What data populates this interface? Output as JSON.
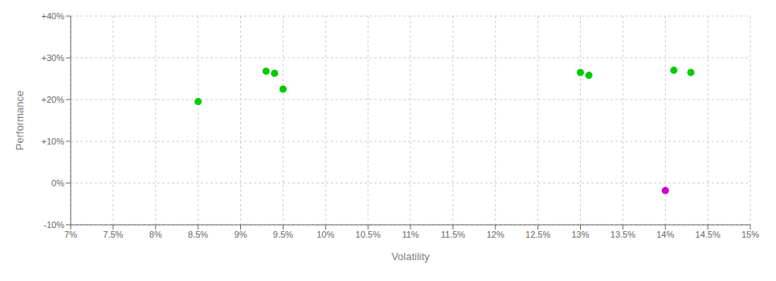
{
  "chart_data": {
    "type": "scatter",
    "xlabel": "Volatility",
    "ylabel": "Performance",
    "xlim": [
      0.07,
      0.15
    ],
    "ylim": [
      -0.1,
      0.4
    ],
    "xticks": [
      {
        "value": 0.07,
        "label": "7%"
      },
      {
        "value": 0.075,
        "label": "7.5%"
      },
      {
        "value": 0.08,
        "label": "8%"
      },
      {
        "value": 0.085,
        "label": "8.5%"
      },
      {
        "value": 0.09,
        "label": "9%"
      },
      {
        "value": 0.095,
        "label": "9.5%"
      },
      {
        "value": 0.1,
        "label": "10%"
      },
      {
        "value": 0.105,
        "label": "10.5%"
      },
      {
        "value": 0.11,
        "label": "11%"
      },
      {
        "value": 0.115,
        "label": "11.5%"
      },
      {
        "value": 0.12,
        "label": "12%"
      },
      {
        "value": 0.125,
        "label": "12.5%"
      },
      {
        "value": 0.13,
        "label": "13%"
      },
      {
        "value": 0.135,
        "label": "13.5%"
      },
      {
        "value": 0.14,
        "label": "14%"
      },
      {
        "value": 0.145,
        "label": "14.5%"
      },
      {
        "value": 0.15,
        "label": "15%"
      }
    ],
    "yticks": [
      {
        "value": -0.1,
        "label": "-10%"
      },
      {
        "value": 0.0,
        "label": "0%"
      },
      {
        "value": 0.1,
        "label": "+10%"
      },
      {
        "value": 0.2,
        "label": "+20%"
      },
      {
        "value": 0.3,
        "label": "+30%"
      },
      {
        "value": 0.4,
        "label": "+40%"
      }
    ],
    "grid": true,
    "series": [
      {
        "color": "#00cc00",
        "x": [
          0.085,
          0.093,
          0.094,
          0.095,
          0.13,
          0.131,
          0.141,
          0.143
        ],
        "y": [
          0.195,
          0.268,
          0.263,
          0.225,
          0.265,
          0.258,
          0.27,
          0.265
        ]
      },
      {
        "color": "#cc00cc",
        "x": [
          0.14
        ],
        "y": [
          -0.018
        ]
      }
    ]
  }
}
